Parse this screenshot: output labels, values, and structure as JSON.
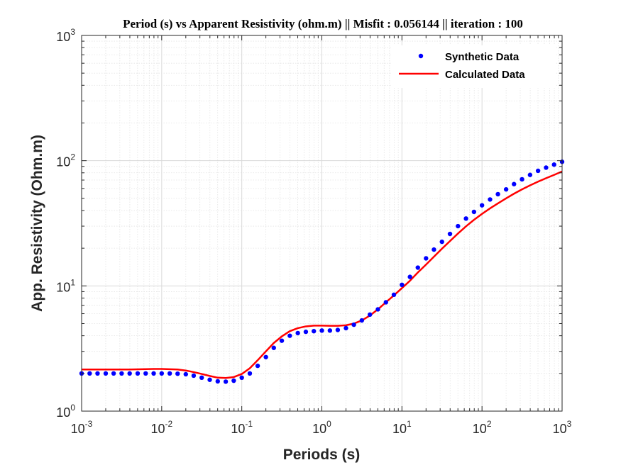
{
  "figure": {
    "title": "Period (s) vs Apparent Resistivity (ohm.m)  || Misfit : 0.056144 || iteration : 100"
  },
  "chart_data": {
    "type": "line",
    "title": "Period (s) vs Apparent Resistivity (ohm.m)  || Misfit : 0.056144 || iteration : 100",
    "xlabel": "Periods (s)",
    "ylabel": "App. Resistivity (Ohm.m)",
    "xscale": "log",
    "yscale": "log",
    "xlim": [
      0.001,
      1000
    ],
    "ylim": [
      1,
      1000
    ],
    "grid": true,
    "minor_grid": true,
    "legend_position": "top-right",
    "x_ticks": [
      {
        "base": "10",
        "exp": "-3",
        "value": 0.001
      },
      {
        "base": "10",
        "exp": "-2",
        "value": 0.01
      },
      {
        "base": "10",
        "exp": "-1",
        "value": 0.1
      },
      {
        "base": "10",
        "exp": "0",
        "value": 1
      },
      {
        "base": "10",
        "exp": "1",
        "value": 10
      },
      {
        "base": "10",
        "exp": "2",
        "value": 100
      },
      {
        "base": "10",
        "exp": "3",
        "value": 1000
      }
    ],
    "y_ticks": [
      {
        "base": "10",
        "exp": "0",
        "value": 1
      },
      {
        "base": "10",
        "exp": "1",
        "value": 10
      },
      {
        "base": "10",
        "exp": "2",
        "value": 100
      },
      {
        "base": "10",
        "exp": "3",
        "value": 1000
      }
    ],
    "series": [
      {
        "name": "Synthetic Data",
        "style": "markers",
        "color": "#0000ff",
        "points": [
          [
            0.001,
            2.0
          ],
          [
            0.00126,
            2.0
          ],
          [
            0.00158,
            2.0
          ],
          [
            0.002,
            2.0
          ],
          [
            0.00251,
            2.0
          ],
          [
            0.00316,
            2.0
          ],
          [
            0.00398,
            2.0
          ],
          [
            0.00501,
            2.0
          ],
          [
            0.00631,
            2.0
          ],
          [
            0.00794,
            2.0
          ],
          [
            0.01,
            2.0
          ],
          [
            0.0126,
            2.0
          ],
          [
            0.0158,
            1.99
          ],
          [
            0.02,
            1.97
          ],
          [
            0.0251,
            1.92
          ],
          [
            0.0316,
            1.85
          ],
          [
            0.0398,
            1.78
          ],
          [
            0.0501,
            1.73
          ],
          [
            0.0631,
            1.72
          ],
          [
            0.0794,
            1.75
          ],
          [
            0.1,
            1.85
          ],
          [
            0.126,
            2.0
          ],
          [
            0.158,
            2.3
          ],
          [
            0.2,
            2.7
          ],
          [
            0.251,
            3.2
          ],
          [
            0.316,
            3.65
          ],
          [
            0.398,
            4.0
          ],
          [
            0.501,
            4.2
          ],
          [
            0.631,
            4.3
          ],
          [
            0.794,
            4.35
          ],
          [
            1.0,
            4.4
          ],
          [
            1.26,
            4.4
          ],
          [
            1.58,
            4.45
          ],
          [
            2.0,
            4.6
          ],
          [
            2.51,
            4.9
          ],
          [
            3.16,
            5.3
          ],
          [
            3.98,
            5.9
          ],
          [
            5.01,
            6.5
          ],
          [
            6.31,
            7.4
          ],
          [
            7.94,
            8.5
          ],
          [
            10.0,
            10.2
          ],
          [
            12.6,
            11.8
          ],
          [
            15.8,
            14.0
          ],
          [
            20.0,
            16.6
          ],
          [
            25.1,
            19.5
          ],
          [
            31.6,
            22.5
          ],
          [
            39.8,
            26.0
          ],
          [
            50.1,
            30.0
          ],
          [
            63.1,
            34.5
          ],
          [
            79.4,
            39.0
          ],
          [
            100,
            44.0
          ],
          [
            126,
            49.0
          ],
          [
            158,
            54.0
          ],
          [
            200,
            59.0
          ],
          [
            251,
            65.0
          ],
          [
            316,
            71.0
          ],
          [
            398,
            77.0
          ],
          [
            501,
            83.0
          ],
          [
            631,
            88.0
          ],
          [
            794,
            93.0
          ],
          [
            1000,
            98.0
          ]
        ]
      },
      {
        "name": "Calculated Data",
        "style": "line",
        "color": "#ff0000",
        "points": [
          [
            0.001,
            2.15
          ],
          [
            0.002,
            2.15
          ],
          [
            0.004,
            2.15
          ],
          [
            0.00794,
            2.17
          ],
          [
            0.01,
            2.17
          ],
          [
            0.0158,
            2.15
          ],
          [
            0.02,
            2.11
          ],
          [
            0.0251,
            2.05
          ],
          [
            0.0316,
            1.98
          ],
          [
            0.0398,
            1.91
          ],
          [
            0.0501,
            1.85
          ],
          [
            0.0631,
            1.84
          ],
          [
            0.0794,
            1.87
          ],
          [
            0.1,
            1.98
          ],
          [
            0.126,
            2.2
          ],
          [
            0.158,
            2.55
          ],
          [
            0.2,
            3.0
          ],
          [
            0.251,
            3.5
          ],
          [
            0.316,
            3.95
          ],
          [
            0.398,
            4.35
          ],
          [
            0.501,
            4.6
          ],
          [
            0.631,
            4.75
          ],
          [
            0.794,
            4.82
          ],
          [
            1.0,
            4.82
          ],
          [
            1.26,
            4.8
          ],
          [
            1.58,
            4.8
          ],
          [
            2.0,
            4.85
          ],
          [
            2.51,
            5.0
          ],
          [
            3.16,
            5.3
          ],
          [
            3.98,
            5.8
          ],
          [
            5.01,
            6.5
          ],
          [
            6.31,
            7.4
          ],
          [
            7.94,
            8.4
          ],
          [
            10.0,
            9.6
          ],
          [
            12.6,
            11.0
          ],
          [
            15.8,
            12.8
          ],
          [
            20.0,
            14.8
          ],
          [
            25.1,
            17.1
          ],
          [
            31.6,
            19.8
          ],
          [
            39.8,
            22.8
          ],
          [
            50.1,
            26.2
          ],
          [
            63.1,
            29.9
          ],
          [
            79.4,
            33.7
          ],
          [
            100,
            37.6
          ],
          [
            126,
            41.6
          ],
          [
            158,
            45.6
          ],
          [
            200,
            50.0
          ],
          [
            251,
            54.5
          ],
          [
            316,
            59.0
          ],
          [
            398,
            63.5
          ],
          [
            501,
            68.0
          ],
          [
            631,
            72.5
          ],
          [
            794,
            77.0
          ],
          [
            1000,
            82.0
          ]
        ]
      }
    ]
  }
}
